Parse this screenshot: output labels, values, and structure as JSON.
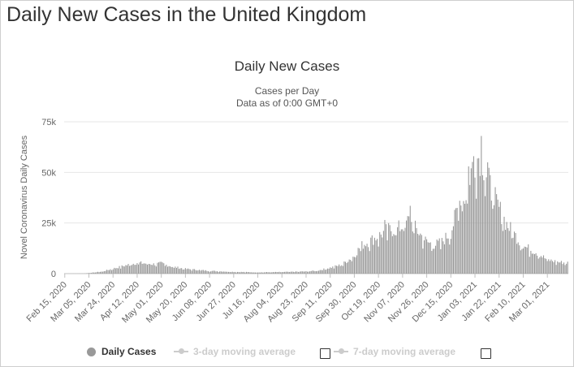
{
  "page": {
    "title": "Daily New Cases in the United Kingdom"
  },
  "chart_data": {
    "type": "bar",
    "title": "Daily New Cases",
    "subtitle": "Cases per Day",
    "subtitle2": "Data as of 0:00 GMT+0",
    "xlabel": "",
    "ylabel": "Novel Coronavirus Daily Cases",
    "ylim": [
      0,
      75000
    ],
    "yticks": [
      0,
      25000,
      50000,
      75000
    ],
    "ytick_labels": [
      "0",
      "25k",
      "50k",
      "75k"
    ],
    "grid": true,
    "bar_color": "#999999",
    "x_start": "2020-02-15",
    "x_end": "2021-03-17",
    "xtick_labels": [
      "Feb 15, 2020",
      "Mar 05, 2020",
      "Mar 24, 2020",
      "Apr 12, 2020",
      "May 01, 2020",
      "May 20, 2020",
      "Jun 08, 2020",
      "Jun 27, 2020",
      "Jul 16, 2020",
      "Aug 04, 2020",
      "Aug 23, 2020",
      "Sep 11, 2020",
      "Sep 30, 2020",
      "Oct 19, 2020",
      "Nov 07, 2020",
      "Nov 26, 2020",
      "Dec 15, 2020",
      "Jan 03, 2021",
      "Jan 22, 2021",
      "Feb 10, 2021",
      "Mar 01, 2021"
    ],
    "key_points": [
      {
        "date": "2020-02-15",
        "value": 0
      },
      {
        "date": "2020-03-01",
        "value": 50
      },
      {
        "date": "2020-03-15",
        "value": 1000
      },
      {
        "date": "2020-03-24",
        "value": 2500
      },
      {
        "date": "2020-04-05",
        "value": 4500
      },
      {
        "date": "2020-04-12",
        "value": 5500
      },
      {
        "date": "2020-04-25",
        "value": 4800
      },
      {
        "date": "2020-05-01",
        "value": 5200
      },
      {
        "date": "2020-05-10",
        "value": 3500
      },
      {
        "date": "2020-05-20",
        "value": 2400
      },
      {
        "date": "2020-06-08",
        "value": 1400
      },
      {
        "date": "2020-06-27",
        "value": 900
      },
      {
        "date": "2020-07-16",
        "value": 650
      },
      {
        "date": "2020-08-04",
        "value": 800
      },
      {
        "date": "2020-08-23",
        "value": 1100
      },
      {
        "date": "2020-09-01",
        "value": 1500
      },
      {
        "date": "2020-09-11",
        "value": 3000
      },
      {
        "date": "2020-09-20",
        "value": 4500
      },
      {
        "date": "2020-09-30",
        "value": 9000
      },
      {
        "date": "2020-10-05",
        "value": 14000
      },
      {
        "date": "2020-10-12",
        "value": 16500
      },
      {
        "date": "2020-10-19",
        "value": 19000
      },
      {
        "date": "2020-10-26",
        "value": 22000
      },
      {
        "date": "2020-11-02",
        "value": 22500
      },
      {
        "date": "2020-11-07",
        "value": 24000
      },
      {
        "date": "2020-11-12",
        "value": 27000
      },
      {
        "date": "2020-11-17",
        "value": 23000
      },
      {
        "date": "2020-11-26",
        "value": 16000
      },
      {
        "date": "2020-12-02",
        "value": 14500
      },
      {
        "date": "2020-12-08",
        "value": 16000
      },
      {
        "date": "2020-12-15",
        "value": 21000
      },
      {
        "date": "2020-12-20",
        "value": 32000
      },
      {
        "date": "2020-12-26",
        "value": 38000
      },
      {
        "date": "2020-12-30",
        "value": 50000
      },
      {
        "date": "2021-01-03",
        "value": 57000
      },
      {
        "date": "2021-01-08",
        "value": 61000
      },
      {
        "date": "2021-01-12",
        "value": 50000
      },
      {
        "date": "2021-01-17",
        "value": 40000
      },
      {
        "date": "2021-01-22",
        "value": 33000
      },
      {
        "date": "2021-01-28",
        "value": 25000
      },
      {
        "date": "2021-02-03",
        "value": 20000
      },
      {
        "date": "2021-02-10",
        "value": 14000
      },
      {
        "date": "2021-02-20",
        "value": 11000
      },
      {
        "date": "2021-03-01",
        "value": 7000
      },
      {
        "date": "2021-03-10",
        "value": 5800
      },
      {
        "date": "2021-03-17",
        "value": 5500
      }
    ],
    "spikes": [
      {
        "date": "2021-01-08",
        "value": 68000
      },
      {
        "date": "2021-01-02",
        "value": 58000
      },
      {
        "date": "2020-12-29",
        "value": 53000
      },
      {
        "date": "2021-01-13",
        "value": 55000
      },
      {
        "date": "2020-11-13",
        "value": 33500
      },
      {
        "date": "2020-10-24",
        "value": 26500
      },
      {
        "date": "2020-12-22",
        "value": 36000
      }
    ]
  },
  "legend": {
    "items": [
      {
        "label": "Daily Cases",
        "color": "#999999",
        "active": true
      },
      {
        "label": "3-day moving average",
        "color": "#cccccc",
        "active": false
      },
      {
        "label": "7-day moving average",
        "color": "#cccccc",
        "active": false
      }
    ]
  }
}
